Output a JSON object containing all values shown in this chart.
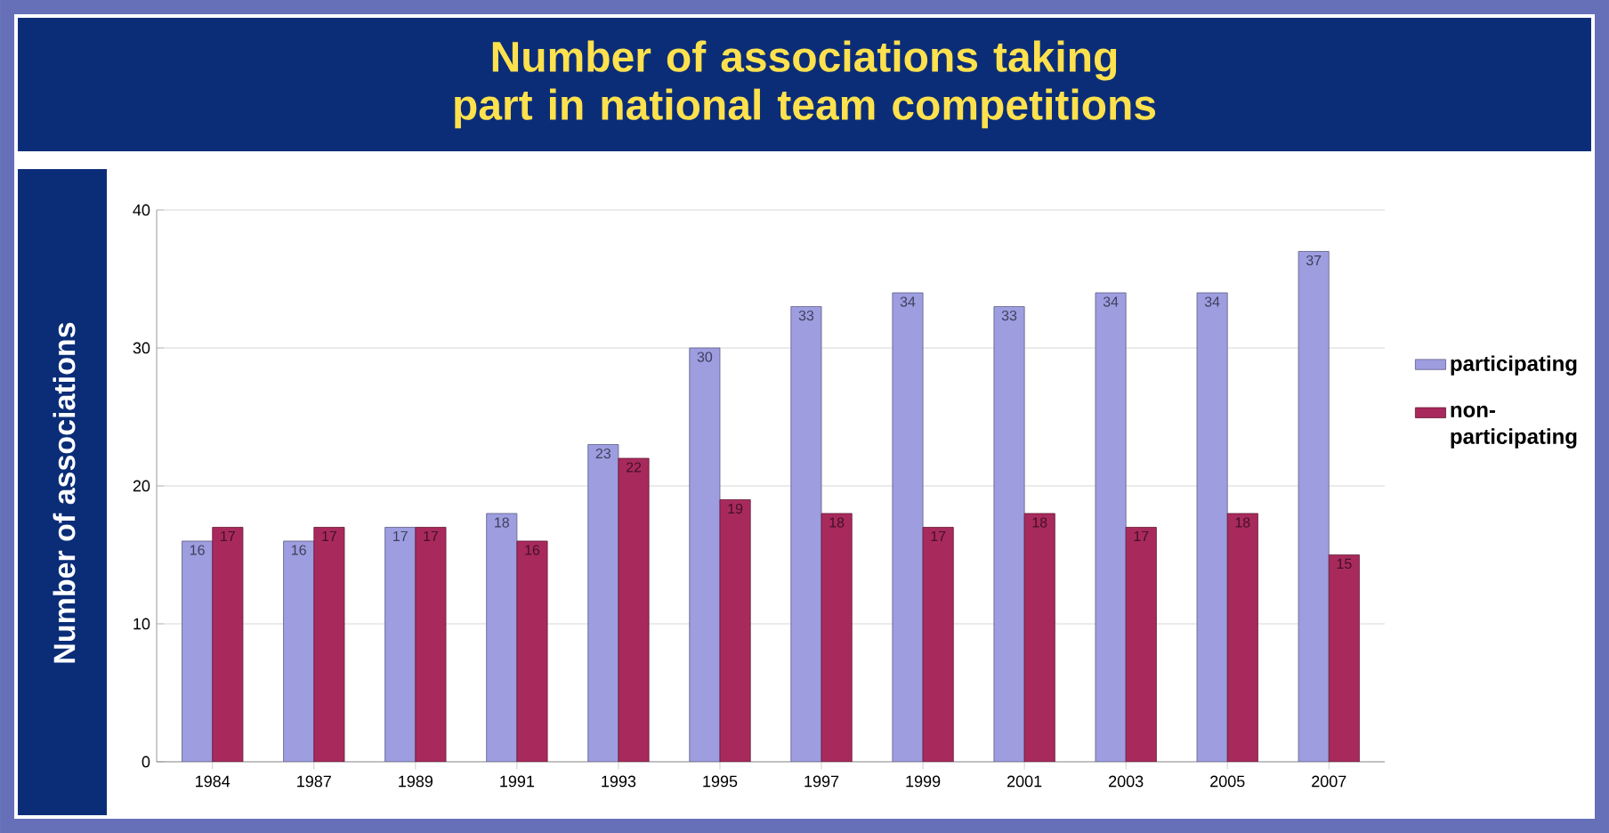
{
  "chart_data": {
    "type": "bar",
    "title": "Number of associations taking part in national team competitions",
    "ylabel": "Number of associations",
    "categories": [
      "1984",
      "1987",
      "1989",
      "1991",
      "1993",
      "1995",
      "1997",
      "1999",
      "2001",
      "2003",
      "2005",
      "2007"
    ],
    "series": [
      {
        "name": "participating",
        "color": "#9d9de0",
        "values": [
          16,
          16,
          17,
          18,
          23,
          30,
          33,
          34,
          33,
          34,
          34,
          37
        ]
      },
      {
        "name": "non-participating",
        "color": "#a82a5c",
        "values": [
          17,
          17,
          17,
          16,
          22,
          19,
          18,
          17,
          18,
          17,
          18,
          15
        ]
      }
    ],
    "ylim": [
      0,
      40
    ],
    "yticks": [
      0,
      10,
      20,
      30,
      40
    ],
    "grid": "y",
    "legend": "right",
    "data_labels": true
  }
}
